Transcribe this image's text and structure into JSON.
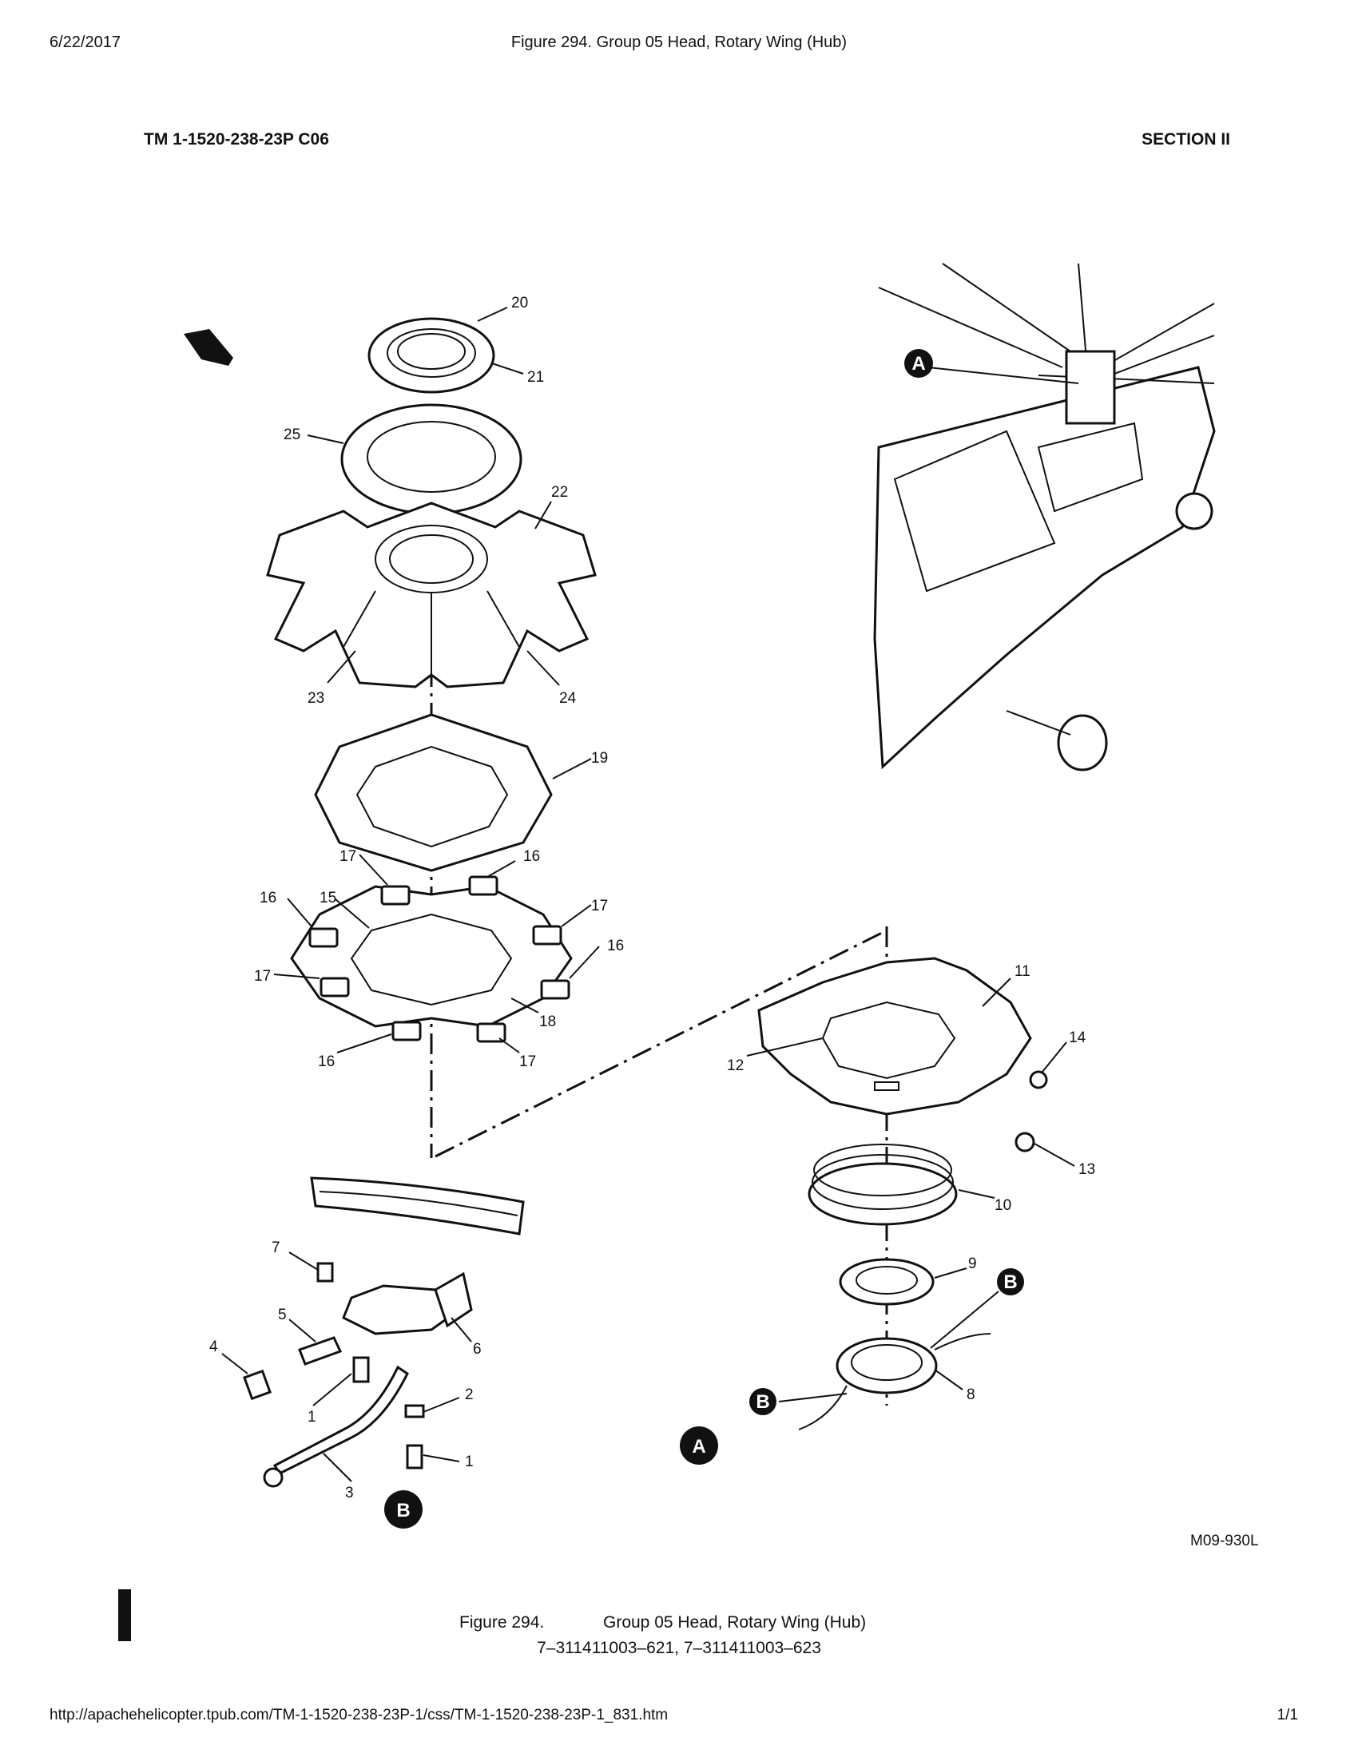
{
  "header": {
    "date": "6/22/2017",
    "title": "Figure   294. Group 05 Head, Rotary Wing (Hub)",
    "tm_number": "TM 1-1520-238-23P C06",
    "section": "SECTION II"
  },
  "diagram": {
    "item_numbers": [
      "1",
      "2",
      "3",
      "4",
      "5",
      "6",
      "7",
      "8",
      "9",
      "10",
      "11",
      "12",
      "13",
      "14",
      "15",
      "16",
      "17",
      "18",
      "19",
      "20",
      "21",
      "22",
      "23",
      "24",
      "25"
    ],
    "callouts": {
      "a": "A",
      "b": "B"
    },
    "drawing_id": "M09-930L"
  },
  "caption": {
    "figure": "Figure 294.",
    "title": "Group 05 Head, Rotary Wing (Hub)",
    "models": "7–311411003–621, 7–311411003–623"
  },
  "footer": {
    "url": "http://apachehelicopter.tpub.com/TM-1-1520-238-23P-1/css/TM-1-1520-238-23P-1_831.htm",
    "page": "1/1"
  }
}
